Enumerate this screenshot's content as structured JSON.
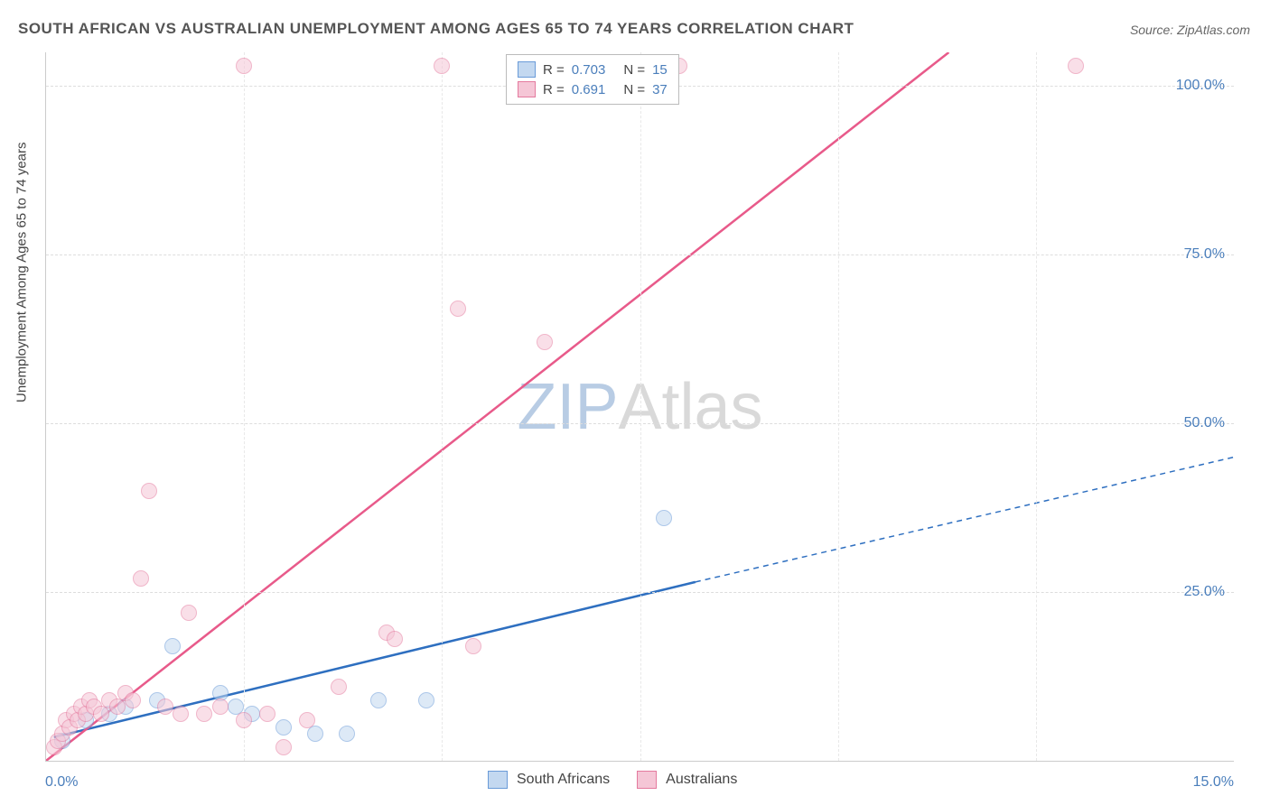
{
  "title": "SOUTH AFRICAN VS AUSTRALIAN UNEMPLOYMENT AMONG AGES 65 TO 74 YEARS CORRELATION CHART",
  "source": "Source: ZipAtlas.com",
  "ylabel": "Unemployment Among Ages 65 to 74 years",
  "watermark_zip": "ZIP",
  "watermark_atlas": "Atlas",
  "chart": {
    "type": "scatter",
    "xlim": [
      0,
      15
    ],
    "ylim": [
      0,
      105
    ],
    "xticks": [
      {
        "v": 0,
        "label": "0.0%"
      },
      {
        "v": 15,
        "label": "15.0%"
      }
    ],
    "yticks": [
      {
        "v": 25,
        "label": "25.0%"
      },
      {
        "v": 50,
        "label": "50.0%"
      },
      {
        "v": 75,
        "label": "75.0%"
      },
      {
        "v": 100,
        "label": "100.0%"
      }
    ],
    "vgrid": [
      2.5,
      5,
      7.5,
      10,
      12.5
    ],
    "grid_color": "#dddddd",
    "background_color": "#ffffff",
    "marker_size": 18,
    "series": [
      {
        "name": "South Africans",
        "fill": "#c3d8f0",
        "stroke": "#6a9bd8",
        "fill_alpha": 0.55,
        "points": [
          [
            0.2,
            3
          ],
          [
            0.5,
            6
          ],
          [
            0.8,
            7
          ],
          [
            1.0,
            8
          ],
          [
            1.4,
            9
          ],
          [
            1.6,
            17
          ],
          [
            2.2,
            10
          ],
          [
            2.4,
            8
          ],
          [
            2.6,
            7
          ],
          [
            3.0,
            5
          ],
          [
            3.4,
            4
          ],
          [
            3.8,
            4
          ],
          [
            4.2,
            9
          ],
          [
            4.8,
            9
          ],
          [
            7.8,
            36
          ]
        ],
        "trend": {
          "x1": 0.1,
          "y1": 3.5,
          "x2": 8.2,
          "y2": 26.5,
          "ext_x2": 15,
          "ext_y2": 45.0,
          "color": "#2e6fc0",
          "width": 2.5,
          "dash_ext": "6,5"
        },
        "r": "0.703",
        "n": "15"
      },
      {
        "name": "Australians",
        "fill": "#f5c6d6",
        "stroke": "#e47a9e",
        "fill_alpha": 0.55,
        "points": [
          [
            0.1,
            2
          ],
          [
            0.15,
            3
          ],
          [
            0.2,
            4
          ],
          [
            0.25,
            6
          ],
          [
            0.3,
            5
          ],
          [
            0.35,
            7
          ],
          [
            0.4,
            6
          ],
          [
            0.45,
            8
          ],
          [
            0.5,
            7
          ],
          [
            0.55,
            9
          ],
          [
            0.6,
            8
          ],
          [
            0.7,
            7
          ],
          [
            0.8,
            9
          ],
          [
            0.9,
            8
          ],
          [
            1.0,
            10
          ],
          [
            1.1,
            9
          ],
          [
            1.2,
            27
          ],
          [
            1.3,
            40
          ],
          [
            1.5,
            8
          ],
          [
            1.7,
            7
          ],
          [
            1.8,
            22
          ],
          [
            2.0,
            7
          ],
          [
            2.2,
            8
          ],
          [
            2.5,
            103
          ],
          [
            2.5,
            6
          ],
          [
            2.8,
            7
          ],
          [
            3.0,
            2
          ],
          [
            3.3,
            6
          ],
          [
            3.7,
            11
          ],
          [
            4.3,
            19
          ],
          [
            4.4,
            18
          ],
          [
            5.0,
            103
          ],
          [
            5.2,
            67
          ],
          [
            5.4,
            17
          ],
          [
            6.3,
            62
          ],
          [
            8.0,
            103
          ],
          [
            13.0,
            103
          ]
        ],
        "trend": {
          "x1": 0,
          "y1": 0,
          "x2": 11.4,
          "y2": 105,
          "color": "#e85a8a",
          "width": 2.5
        },
        "r": "0.691",
        "n": "37"
      }
    ]
  },
  "legend_top": {
    "r_label": "R =",
    "n_label": "N ="
  },
  "legend_bottom": {
    "items": [
      {
        "label": "South Africans",
        "fill": "#c3d8f0",
        "stroke": "#6a9bd8"
      },
      {
        "label": "Australians",
        "fill": "#f5c6d6",
        "stroke": "#e47a9e"
      }
    ]
  }
}
